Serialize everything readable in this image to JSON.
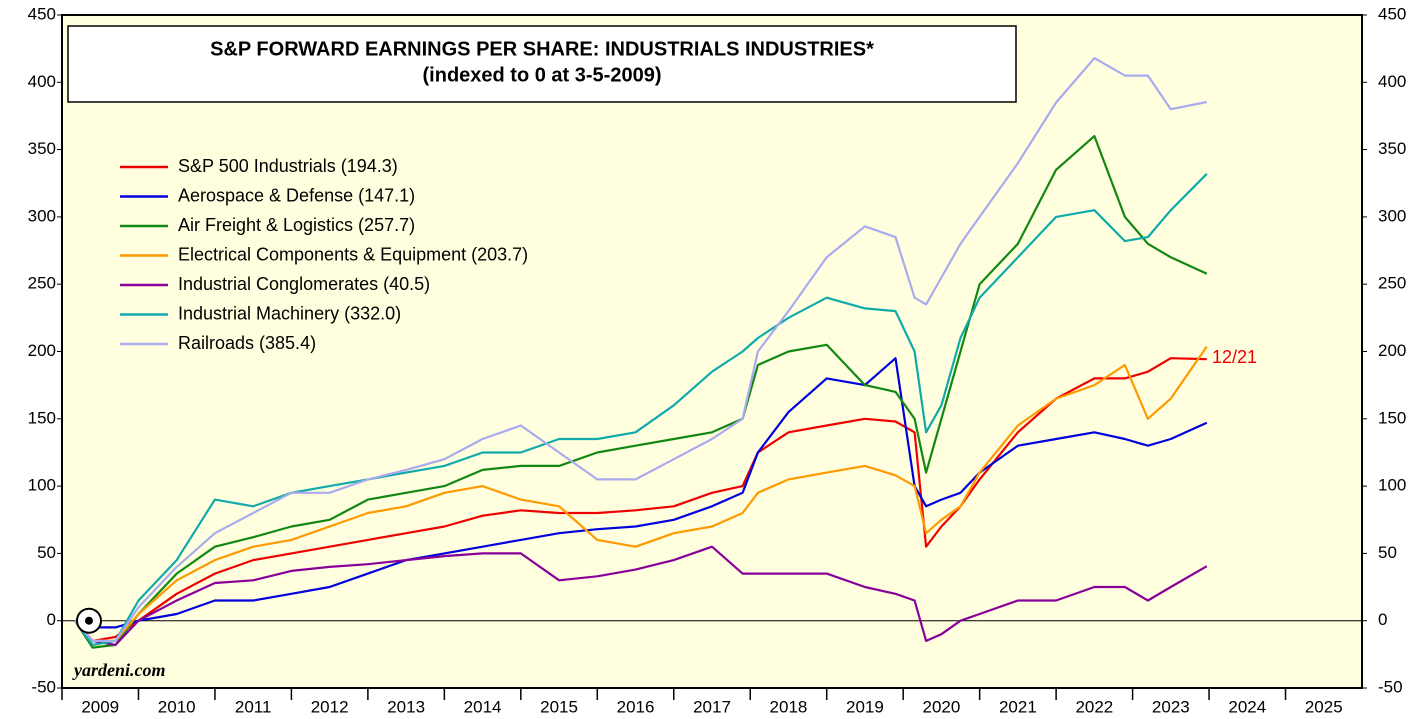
{
  "chart_data": {
    "type": "line",
    "title": "S&P FORWARD EARNINGS PER SHARE: INDUSTRIALS INDUSTRIES*",
    "subtitle": "(indexed to 0 at 3-5-2009)",
    "annotations": [
      "12/21",
      "yardeni.com"
    ],
    "x": [
      2009.17,
      2009.4,
      2009.7,
      2010.0,
      2010.5,
      2011.0,
      2011.5,
      2012.0,
      2012.5,
      2013.0,
      2013.5,
      2014.0,
      2014.5,
      2015.0,
      2015.5,
      2016.0,
      2016.5,
      2017.0,
      2017.5,
      2017.9,
      2018.1,
      2018.5,
      2019.0,
      2019.5,
      2019.9,
      2020.15,
      2020.3,
      2020.5,
      2020.75,
      2021.0,
      2021.5,
      2022.0,
      2022.5,
      2022.9,
      2023.2,
      2023.5,
      2023.97
    ],
    "series": [
      {
        "name": "S&P 500 Industrials (194.3)",
        "color": "#ee0000",
        "values": [
          0,
          -15,
          -12,
          0,
          20,
          35,
          45,
          50,
          55,
          60,
          65,
          70,
          78,
          82,
          80,
          80,
          82,
          85,
          95,
          100,
          125,
          140,
          145,
          150,
          148,
          140,
          55,
          70,
          85,
          105,
          140,
          165,
          180,
          180,
          185,
          195,
          194.3
        ]
      },
      {
        "name": "Aerospace & Defense (147.1)",
        "color": "#0000dd",
        "values": [
          0,
          -5,
          -5,
          0,
          5,
          15,
          15,
          20,
          25,
          35,
          45,
          50,
          55,
          60,
          65,
          68,
          70,
          75,
          85,
          95,
          125,
          155,
          180,
          175,
          195,
          100,
          85,
          90,
          95,
          110,
          130,
          135,
          140,
          135,
          130,
          135,
          147.1
        ]
      },
      {
        "name": "Air Freight & Logistics (257.7)",
        "color": "#118811",
        "values": [
          0,
          -20,
          -18,
          5,
          35,
          55,
          62,
          70,
          75,
          90,
          95,
          100,
          112,
          115,
          115,
          125,
          130,
          135,
          140,
          150,
          190,
          200,
          205,
          175,
          170,
          150,
          110,
          150,
          200,
          250,
          280,
          335,
          360,
          300,
          280,
          270,
          257.7
        ]
      },
      {
        "name": "Electrical Components & Equipment (203.7)",
        "color": "#ff9900",
        "values": [
          0,
          -15,
          -15,
          5,
          30,
          45,
          55,
          60,
          70,
          80,
          85,
          95,
          100,
          90,
          85,
          60,
          55,
          65,
          70,
          80,
          95,
          105,
          110,
          115,
          108,
          100,
          65,
          75,
          85,
          110,
          145,
          165,
          175,
          190,
          150,
          165,
          203.7
        ]
      },
      {
        "name": "Industrial Conglomerates (40.5)",
        "color": "#880099",
        "values": [
          0,
          -15,
          -18,
          0,
          15,
          28,
          30,
          37,
          40,
          42,
          45,
          48,
          50,
          50,
          30,
          33,
          38,
          45,
          55,
          35,
          35,
          35,
          35,
          25,
          20,
          15,
          -15,
          -10,
          0,
          5,
          15,
          15,
          25,
          25,
          15,
          25,
          40.5
        ]
      },
      {
        "name": "Industrial Machinery (332.0)",
        "color": "#11aaaa",
        "values": [
          0,
          -18,
          -15,
          15,
          45,
          90,
          85,
          95,
          100,
          105,
          110,
          115,
          125,
          125,
          135,
          135,
          140,
          160,
          185,
          200,
          210,
          225,
          240,
          232,
          230,
          200,
          140,
          160,
          210,
          240,
          270,
          300,
          305,
          282,
          285,
          305,
          332
        ]
      },
      {
        "name": "Railroads (385.4)",
        "color": "#aaaaee",
        "values": [
          0,
          -15,
          -15,
          10,
          40,
          65,
          80,
          95,
          95,
          105,
          112,
          120,
          135,
          145,
          125,
          105,
          105,
          120,
          135,
          150,
          200,
          230,
          270,
          293,
          285,
          240,
          235,
          255,
          280,
          300,
          340,
          385,
          418,
          405,
          405,
          380,
          385.4
        ]
      }
    ],
    "xlim": [
      2009,
      2026
    ],
    "xticks": [
      2009,
      2010,
      2011,
      2012,
      2013,
      2014,
      2015,
      2016,
      2017,
      2018,
      2019,
      2020,
      2021,
      2022,
      2023,
      2024,
      2025
    ],
    "ylim": [
      -50,
      450
    ],
    "yticks": [
      -50,
      0,
      50,
      100,
      150,
      200,
      250,
      300,
      350,
      400,
      450
    ]
  }
}
